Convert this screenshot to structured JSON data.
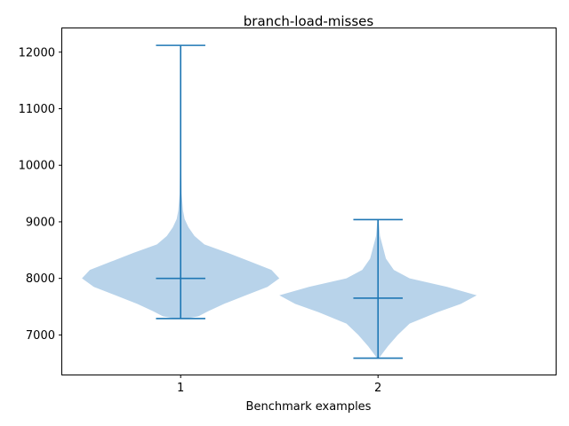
{
  "chart_data": {
    "type": "violin",
    "title": "branch-load-misses",
    "xlabel": "Benchmark examples",
    "ylabel": "",
    "categories": [
      "1",
      "2"
    ],
    "x_ticks": [
      "1",
      "2"
    ],
    "y_ticks": [
      "7000",
      "8000",
      "9000",
      "10000",
      "11000",
      "12000"
    ],
    "ylim": [
      6300,
      12420
    ],
    "xlim": [
      0.4,
      2.9
    ],
    "grid": false,
    "colors": {
      "body": "#b8d3ea",
      "lines": "#1f77b4"
    },
    "series": [
      {
        "position": 1,
        "min": 7290,
        "max": 12120,
        "mean": 8000,
        "density": [
          [
            7290,
            0.03
          ],
          [
            7330,
            0.09
          ],
          [
            7420,
            0.14
          ],
          [
            7550,
            0.22
          ],
          [
            7700,
            0.33
          ],
          [
            7850,
            0.44
          ],
          [
            8000,
            0.5
          ],
          [
            8150,
            0.46
          ],
          [
            8300,
            0.35
          ],
          [
            8450,
            0.24
          ],
          [
            8600,
            0.12
          ],
          [
            8750,
            0.07
          ],
          [
            8900,
            0.04
          ],
          [
            9050,
            0.02
          ],
          [
            9200,
            0.012
          ],
          [
            9500,
            0.005
          ],
          [
            10000,
            0.003
          ],
          [
            11000,
            0.002
          ],
          [
            12120,
            0.001
          ]
        ]
      },
      {
        "position": 2,
        "min": 6590,
        "max": 9040,
        "mean": 7650,
        "density": [
          [
            6590,
            0.005
          ],
          [
            6660,
            0.02
          ],
          [
            6800,
            0.05
          ],
          [
            7000,
            0.1
          ],
          [
            7200,
            0.16
          ],
          [
            7400,
            0.3
          ],
          [
            7550,
            0.42
          ],
          [
            7700,
            0.5
          ],
          [
            7850,
            0.35
          ],
          [
            8000,
            0.16
          ],
          [
            8150,
            0.08
          ],
          [
            8350,
            0.04
          ],
          [
            8550,
            0.025
          ],
          [
            8750,
            0.01
          ],
          [
            9040,
            0.003
          ]
        ]
      }
    ]
  }
}
